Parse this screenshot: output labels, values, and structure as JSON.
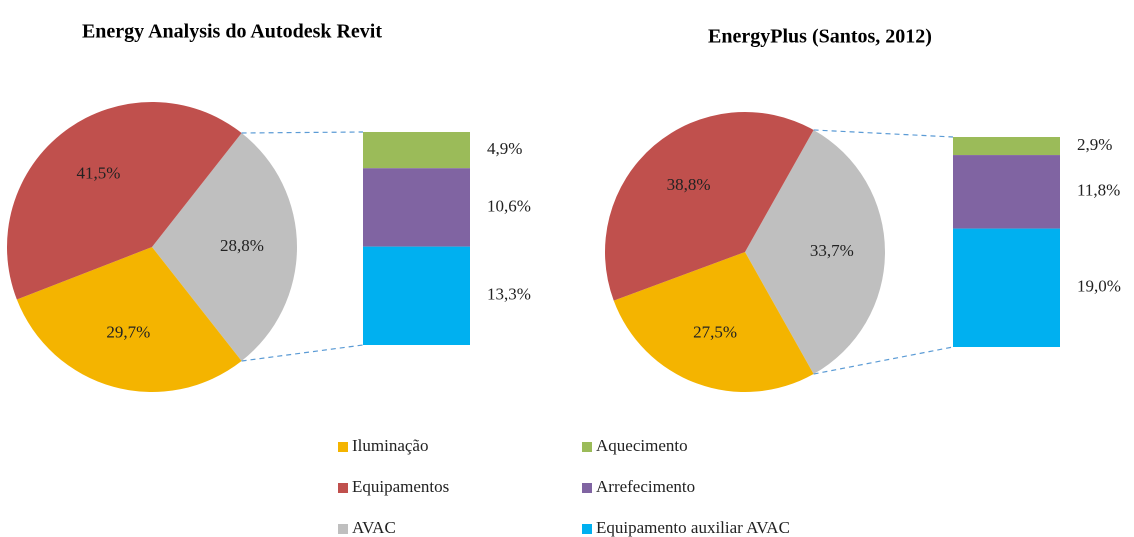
{
  "legend": {
    "pie": [
      {
        "name": "Iluminação",
        "color": "#f4b400"
      },
      {
        "name": "Equipamentos",
        "color": "#c0504d"
      },
      {
        "name": "AVAC",
        "color": "#bfbfbf"
      }
    ],
    "breakdown": [
      {
        "name": "Aquecimento",
        "color": "#9bbb59"
      },
      {
        "name": "Arrefecimento",
        "color": "#8064a2"
      },
      {
        "name": "Equipamento auxiliar AVAC",
        "color": "#00b0f0"
      }
    ]
  },
  "chart_data": [
    {
      "type": "pie",
      "title": "Energy Analysis do Autodesk Revit",
      "values": [
        29.7,
        41.5,
        28.8
      ],
      "value_labels": [
        "29,7%",
        "41,5%",
        "28,8%"
      ],
      "breakdown": {
        "values": [
          4.9,
          10.6,
          13.3
        ],
        "value_labels": [
          "4,9%",
          "10,6%",
          "13,3%"
        ]
      }
    },
    {
      "type": "pie",
      "title": "EnergyPlus  (Santos, 2012)",
      "values": [
        27.5,
        38.8,
        33.7
      ],
      "value_labels": [
        "27,5%",
        "38,8%",
        "33,7%"
      ],
      "breakdown": {
        "values": [
          2.9,
          11.8,
          19.0
        ],
        "value_labels": [
          "2,9%",
          "11,8%",
          "19,0%"
        ]
      }
    }
  ]
}
